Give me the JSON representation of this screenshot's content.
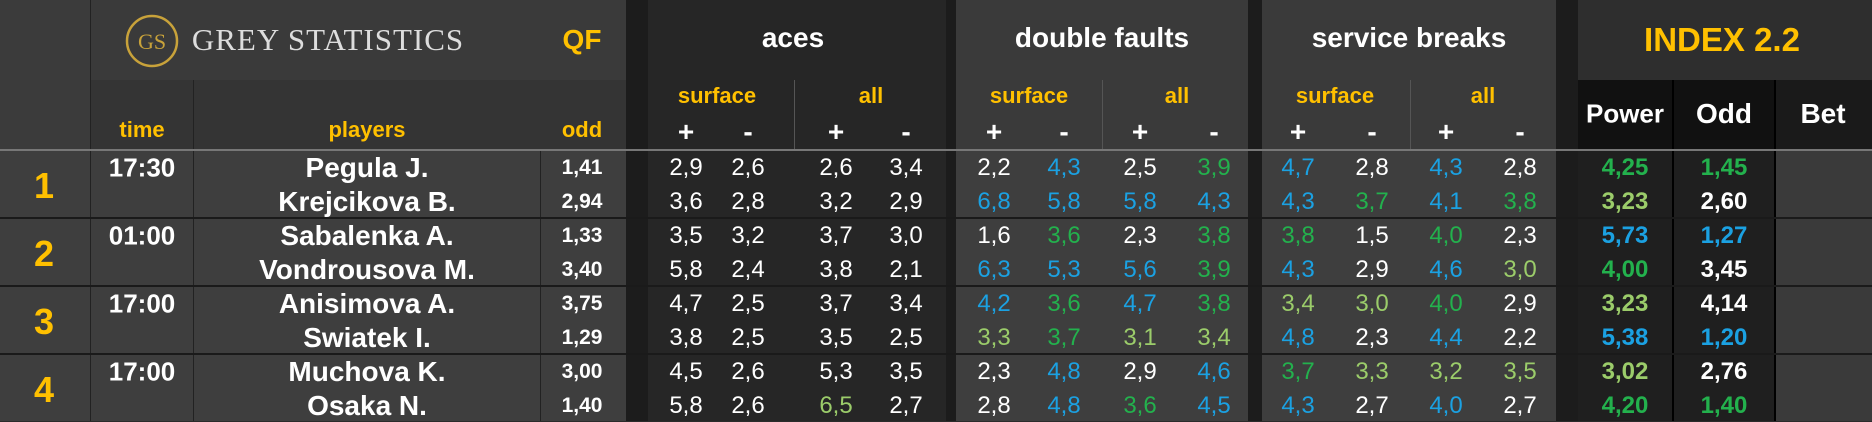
{
  "brand": {
    "monogram": "GS",
    "name": "GREY STATISTICS"
  },
  "round": "QF",
  "index_title": "INDEX 2.2",
  "groups": {
    "aces": "aces",
    "double_faults": "double faults",
    "service_breaks": "service breaks"
  },
  "subheaders": {
    "surface": "surface",
    "all": "all",
    "plus": "+",
    "minus": "-"
  },
  "columns": {
    "time": "time",
    "players": "players",
    "odd": "odd",
    "power": "Power",
    "odd2": "Odd",
    "bet": "Bet"
  },
  "colors": {
    "green": "#23b14d",
    "blue": "#1ba1e2",
    "lightgreen": "#9bcc6a",
    "white": "#ffffff",
    "gold": "#ffc000"
  },
  "matches": [
    {
      "num": "1",
      "time": "17:30",
      "rows": [
        {
          "player": "Pegula J.",
          "odd": "1,41",
          "stats": [
            {
              "v": "2,9",
              "c": "white"
            },
            {
              "v": "2,6",
              "c": "white"
            },
            {
              "v": "2,6",
              "c": "white"
            },
            {
              "v": "3,4",
              "c": "white"
            },
            {
              "v": "2,2",
              "c": "white"
            },
            {
              "v": "4,3",
              "c": "blue"
            },
            {
              "v": "2,5",
              "c": "white"
            },
            {
              "v": "3,9",
              "c": "green"
            },
            {
              "v": "4,7",
              "c": "blue"
            },
            {
              "v": "2,8",
              "c": "white"
            },
            {
              "v": "4,3",
              "c": "blue"
            },
            {
              "v": "2,8",
              "c": "white"
            }
          ],
          "power": {
            "v": "4,25",
            "c": "green"
          },
          "odd2": {
            "v": "1,45",
            "c": "green"
          }
        },
        {
          "player": "Krejcikova B.",
          "odd": "2,94",
          "stats": [
            {
              "v": "3,6",
              "c": "white"
            },
            {
              "v": "2,8",
              "c": "white"
            },
            {
              "v": "3,2",
              "c": "white"
            },
            {
              "v": "2,9",
              "c": "white"
            },
            {
              "v": "6,8",
              "c": "blue"
            },
            {
              "v": "5,8",
              "c": "blue"
            },
            {
              "v": "5,8",
              "c": "blue"
            },
            {
              "v": "4,3",
              "c": "blue"
            },
            {
              "v": "4,3",
              "c": "blue"
            },
            {
              "v": "3,7",
              "c": "green"
            },
            {
              "v": "4,1",
              "c": "blue"
            },
            {
              "v": "3,8",
              "c": "green"
            }
          ],
          "power": {
            "v": "3,23",
            "c": "lightgreen"
          },
          "odd2": {
            "v": "2,60",
            "c": "white"
          }
        }
      ]
    },
    {
      "num": "2",
      "time": "01:00",
      "rows": [
        {
          "player": "Sabalenka A.",
          "odd": "1,33",
          "stats": [
            {
              "v": "3,5",
              "c": "white"
            },
            {
              "v": "3,2",
              "c": "white"
            },
            {
              "v": "3,7",
              "c": "white"
            },
            {
              "v": "3,0",
              "c": "white"
            },
            {
              "v": "1,6",
              "c": "white"
            },
            {
              "v": "3,6",
              "c": "green"
            },
            {
              "v": "2,3",
              "c": "white"
            },
            {
              "v": "3,8",
              "c": "green"
            },
            {
              "v": "3,8",
              "c": "green"
            },
            {
              "v": "1,5",
              "c": "white"
            },
            {
              "v": "4,0",
              "c": "green"
            },
            {
              "v": "2,3",
              "c": "white"
            }
          ],
          "power": {
            "v": "5,73",
            "c": "blue"
          },
          "odd2": {
            "v": "1,27",
            "c": "blue"
          }
        },
        {
          "player": "Vondrousova M.",
          "odd": "3,40",
          "stats": [
            {
              "v": "5,8",
              "c": "white"
            },
            {
              "v": "2,4",
              "c": "white"
            },
            {
              "v": "3,8",
              "c": "white"
            },
            {
              "v": "2,1",
              "c": "white"
            },
            {
              "v": "6,3",
              "c": "blue"
            },
            {
              "v": "5,3",
              "c": "blue"
            },
            {
              "v": "5,6",
              "c": "blue"
            },
            {
              "v": "3,9",
              "c": "green"
            },
            {
              "v": "4,3",
              "c": "blue"
            },
            {
              "v": "2,9",
              "c": "white"
            },
            {
              "v": "4,6",
              "c": "blue"
            },
            {
              "v": "3,0",
              "c": "lightgreen"
            }
          ],
          "power": {
            "v": "4,00",
            "c": "green"
          },
          "odd2": {
            "v": "3,45",
            "c": "white"
          }
        }
      ]
    },
    {
      "num": "3",
      "time": "17:00",
      "rows": [
        {
          "player": "Anisimova A.",
          "odd": "3,75",
          "stats": [
            {
              "v": "4,7",
              "c": "white"
            },
            {
              "v": "2,5",
              "c": "white"
            },
            {
              "v": "3,7",
              "c": "white"
            },
            {
              "v": "3,4",
              "c": "white"
            },
            {
              "v": "4,2",
              "c": "blue"
            },
            {
              "v": "3,6",
              "c": "green"
            },
            {
              "v": "4,7",
              "c": "blue"
            },
            {
              "v": "3,8",
              "c": "green"
            },
            {
              "v": "3,4",
              "c": "lightgreen"
            },
            {
              "v": "3,0",
              "c": "lightgreen"
            },
            {
              "v": "4,0",
              "c": "green"
            },
            {
              "v": "2,9",
              "c": "white"
            }
          ],
          "power": {
            "v": "3,23",
            "c": "lightgreen"
          },
          "odd2": {
            "v": "4,14",
            "c": "white"
          }
        },
        {
          "player": "Swiatek I.",
          "odd": "1,29",
          "stats": [
            {
              "v": "3,8",
              "c": "white"
            },
            {
              "v": "2,5",
              "c": "white"
            },
            {
              "v": "3,5",
              "c": "white"
            },
            {
              "v": "2,5",
              "c": "white"
            },
            {
              "v": "3,3",
              "c": "lightgreen"
            },
            {
              "v": "3,7",
              "c": "green"
            },
            {
              "v": "3,1",
              "c": "lightgreen"
            },
            {
              "v": "3,4",
              "c": "lightgreen"
            },
            {
              "v": "4,8",
              "c": "blue"
            },
            {
              "v": "2,3",
              "c": "white"
            },
            {
              "v": "4,4",
              "c": "blue"
            },
            {
              "v": "2,2",
              "c": "white"
            }
          ],
          "power": {
            "v": "5,38",
            "c": "blue"
          },
          "odd2": {
            "v": "1,20",
            "c": "blue"
          }
        }
      ]
    },
    {
      "num": "4",
      "time": "17:00",
      "rows": [
        {
          "player": "Muchova K.",
          "odd": "3,00",
          "stats": [
            {
              "v": "4,5",
              "c": "white"
            },
            {
              "v": "2,6",
              "c": "white"
            },
            {
              "v": "5,3",
              "c": "white"
            },
            {
              "v": "3,5",
              "c": "white"
            },
            {
              "v": "2,3",
              "c": "white"
            },
            {
              "v": "4,8",
              "c": "blue"
            },
            {
              "v": "2,9",
              "c": "white"
            },
            {
              "v": "4,6",
              "c": "blue"
            },
            {
              "v": "3,7",
              "c": "green"
            },
            {
              "v": "3,3",
              "c": "lightgreen"
            },
            {
              "v": "3,2",
              "c": "lightgreen"
            },
            {
              "v": "3,5",
              "c": "lightgreen"
            }
          ],
          "power": {
            "v": "3,02",
            "c": "lightgreen"
          },
          "odd2": {
            "v": "2,76",
            "c": "white"
          }
        },
        {
          "player": "Osaka N.",
          "odd": "1,40",
          "stats": [
            {
              "v": "5,8",
              "c": "white"
            },
            {
              "v": "2,6",
              "c": "white"
            },
            {
              "v": "6,5",
              "c": "lightgreen"
            },
            {
              "v": "2,7",
              "c": "white"
            },
            {
              "v": "2,8",
              "c": "white"
            },
            {
              "v": "4,8",
              "c": "blue"
            },
            {
              "v": "3,6",
              "c": "green"
            },
            {
              "v": "4,5",
              "c": "blue"
            },
            {
              "v": "4,3",
              "c": "blue"
            },
            {
              "v": "2,7",
              "c": "white"
            },
            {
              "v": "4,0",
              "c": "blue"
            },
            {
              "v": "2,7",
              "c": "white"
            }
          ],
          "power": {
            "v": "4,20",
            "c": "green"
          },
          "odd2": {
            "v": "1,40",
            "c": "green"
          }
        }
      ]
    }
  ]
}
